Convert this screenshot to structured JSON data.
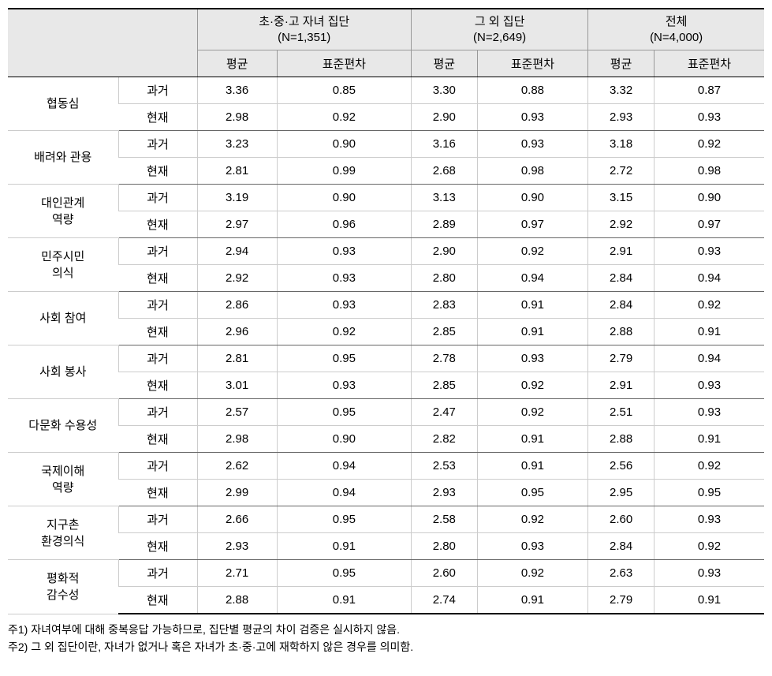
{
  "table": {
    "groups": [
      {
        "title": "초·중·고 자녀 집단",
        "n": "(N=1,351)"
      },
      {
        "title": "그 외 집단",
        "n": "(N=2,649)"
      },
      {
        "title": "전체",
        "n": "(N=4,000)"
      }
    ],
    "subheaders": [
      "평균",
      "표준편차"
    ],
    "categories": [
      {
        "label": "협동심",
        "rows": [
          {
            "period": "과거",
            "values": [
              "3.36",
              "0.85",
              "3.30",
              "0.88",
              "3.32",
              "0.87"
            ]
          },
          {
            "period": "현재",
            "values": [
              "2.98",
              "0.92",
              "2.90",
              "0.93",
              "2.93",
              "0.93"
            ]
          }
        ]
      },
      {
        "label": "배려와 관용",
        "rows": [
          {
            "period": "과거",
            "values": [
              "3.23",
              "0.90",
              "3.16",
              "0.93",
              "3.18",
              "0.92"
            ]
          },
          {
            "period": "현재",
            "values": [
              "2.81",
              "0.99",
              "2.68",
              "0.98",
              "2.72",
              "0.98"
            ]
          }
        ]
      },
      {
        "label": "대인관계\n역량",
        "rows": [
          {
            "period": "과거",
            "values": [
              "3.19",
              "0.90",
              "3.13",
              "0.90",
              "3.15",
              "0.90"
            ]
          },
          {
            "period": "현재",
            "values": [
              "2.97",
              "0.96",
              "2.89",
              "0.97",
              "2.92",
              "0.97"
            ]
          }
        ]
      },
      {
        "label": "민주시민\n의식",
        "rows": [
          {
            "period": "과거",
            "values": [
              "2.94",
              "0.93",
              "2.90",
              "0.92",
              "2.91",
              "0.93"
            ]
          },
          {
            "period": "현재",
            "values": [
              "2.92",
              "0.93",
              "2.80",
              "0.94",
              "2.84",
              "0.94"
            ]
          }
        ]
      },
      {
        "label": "사회 참여",
        "rows": [
          {
            "period": "과거",
            "values": [
              "2.86",
              "0.93",
              "2.83",
              "0.91",
              "2.84",
              "0.92"
            ]
          },
          {
            "period": "현재",
            "values": [
              "2.96",
              "0.92",
              "2.85",
              "0.91",
              "2.88",
              "0.91"
            ]
          }
        ]
      },
      {
        "label": "사회 봉사",
        "rows": [
          {
            "period": "과거",
            "values": [
              "2.81",
              "0.95",
              "2.78",
              "0.93",
              "2.79",
              "0.94"
            ]
          },
          {
            "period": "현재",
            "values": [
              "3.01",
              "0.93",
              "2.85",
              "0.92",
              "2.91",
              "0.93"
            ]
          }
        ]
      },
      {
        "label": "다문화 수용성",
        "rows": [
          {
            "period": "과거",
            "values": [
              "2.57",
              "0.95",
              "2.47",
              "0.92",
              "2.51",
              "0.93"
            ]
          },
          {
            "period": "현재",
            "values": [
              "2.98",
              "0.90",
              "2.82",
              "0.91",
              "2.88",
              "0.91"
            ]
          }
        ]
      },
      {
        "label": "국제이해\n역량",
        "rows": [
          {
            "period": "과거",
            "values": [
              "2.62",
              "0.94",
              "2.53",
              "0.91",
              "2.56",
              "0.92"
            ]
          },
          {
            "period": "현재",
            "values": [
              "2.99",
              "0.94",
              "2.93",
              "0.95",
              "2.95",
              "0.95"
            ]
          }
        ]
      },
      {
        "label": "지구촌\n환경의식",
        "rows": [
          {
            "period": "과거",
            "values": [
              "2.66",
              "0.95",
              "2.58",
              "0.92",
              "2.60",
              "0.93"
            ]
          },
          {
            "period": "현재",
            "values": [
              "2.93",
              "0.91",
              "2.80",
              "0.93",
              "2.84",
              "0.92"
            ]
          }
        ]
      },
      {
        "label": "평화적\n감수성",
        "rows": [
          {
            "period": "과거",
            "values": [
              "2.71",
              "0.95",
              "2.60",
              "0.92",
              "2.63",
              "0.93"
            ]
          },
          {
            "period": "현재",
            "values": [
              "2.88",
              "0.91",
              "2.74",
              "0.91",
              "2.79",
              "0.91"
            ]
          }
        ]
      }
    ]
  },
  "footnotes": [
    "주1) 자녀여부에 대해 중복응답 가능하므로, 집단별 평균의 차이 검증은 실시하지 않음.",
    "주2) 그 외 집단이란, 자녀가 없거나 혹은 자녀가 초·중·고에 재학하지 않은 경우를 의미함."
  ],
  "styles": {
    "header_bg": "#e8e8e8",
    "border_heavy": "#000000",
    "border_light": "#cccccc",
    "border_mid": "#666666",
    "font_size_table": 15,
    "font_size_footnote": 14,
    "background": "#ffffff"
  }
}
